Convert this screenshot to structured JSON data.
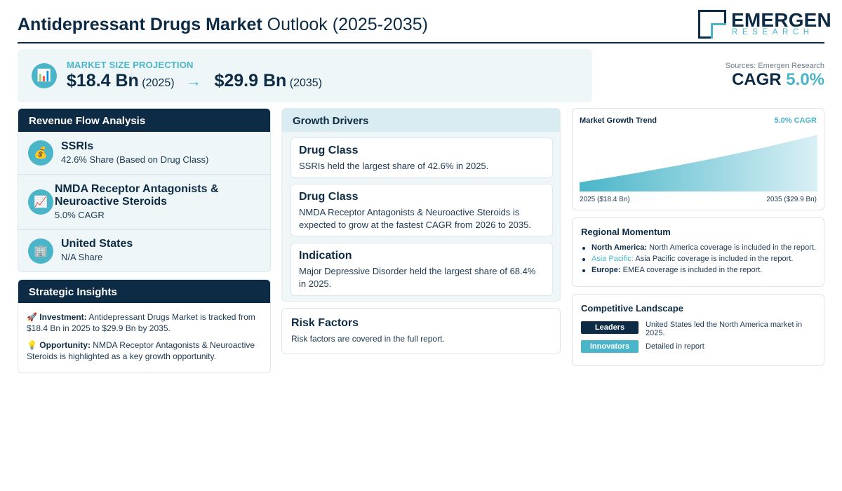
{
  "header": {
    "title_bold": "Antidepressant Drugs Market",
    "title_rest": " Outlook (2025-2035)",
    "logo_main": "EMERGEN",
    "logo_sub": "RESEARCH"
  },
  "projection": {
    "label": "MARKET SIZE PROJECTION",
    "icon": "bar-chart-icon",
    "start_value": "$18.4 Bn",
    "start_year": "(2025)",
    "arrow": "→",
    "end_value": "$29.9 Bn",
    "end_year": "(2035)"
  },
  "sources": "Sources: Emergen Research",
  "cagr": {
    "label": "CAGR ",
    "value": "5.0%"
  },
  "revenue_flow": {
    "title": "Revenue Flow Analysis",
    "items": [
      {
        "icon": "money-bag-icon",
        "title": "SSRIs",
        "subtitle": "42.6% Share (Based on Drug Class)"
      },
      {
        "icon": "trend-up-icon",
        "title": "NMDA Receptor Antagonists & Neuroactive Steroids",
        "subtitle": "5.0% CAGR"
      },
      {
        "icon": "building-icon",
        "title": "United States",
        "subtitle": "N/A Share"
      }
    ]
  },
  "strategic_insights": {
    "title": "Strategic Insights",
    "items": [
      {
        "icon": "rocket-icon",
        "label": "Investment:",
        "text": " Antidepressant Drugs Market is tracked from $18.4 Bn in 2025 to $29.9 Bn by 2035."
      },
      {
        "icon": "lightbulb-icon",
        "label": "Opportunity:",
        "text": " NMDA Receptor Antagonists & Neuroactive Steroids is highlighted as a key growth opportunity."
      }
    ]
  },
  "growth_drivers": {
    "title": "Growth Drivers",
    "cards": [
      {
        "title": "Drug Class",
        "body": "SSRIs held the largest share of 42.6% in 2025."
      },
      {
        "title": "Drug Class",
        "body": "NMDA Receptor Antagonists & Neuroactive Steroids is expected to grow at the fastest CAGR from 2026 to 2035."
      },
      {
        "title": "Indication",
        "body": "Major Depressive Disorder held the largest share of 68.4% in 2025."
      }
    ]
  },
  "risk_factors": {
    "title": "Risk Factors",
    "body": "Risk factors are covered in the full report."
  },
  "chart_data": {
    "type": "area",
    "title": "Market Growth Trend",
    "annotation": "5.0% CAGR",
    "x": [
      2025,
      2035
    ],
    "x_labels": [
      "2025 ($18.4 Bn)",
      "2035 ($29.9 Bn)"
    ],
    "series": [
      {
        "values": [
          18.4,
          29.9
        ]
      }
    ],
    "grid": false,
    "colors": {
      "fill_start": "#4ab5c9",
      "fill_end": "#d9f0f5"
    }
  },
  "regional_momentum": {
    "title": "Regional Momentum",
    "items": [
      {
        "label": "North America:",
        "text": " North America coverage is included in the report."
      },
      {
        "label": "Asia Pacific:",
        "text": " Asia Pacific coverage is included in the report."
      },
      {
        "label": "Europe:",
        "text": " EMEA coverage is included in the report."
      }
    ]
  },
  "competitive_landscape": {
    "title": "Competitive Landscape",
    "rows": [
      {
        "badge": "Leaders",
        "text": "United States led the North America market in 2025."
      },
      {
        "badge": "Innovators",
        "text": "Detailed in report"
      }
    ]
  },
  "colors": {
    "navy": "#0d2b45",
    "accent": "#4ab5c9",
    "panel_bg": "#eef6f8"
  }
}
